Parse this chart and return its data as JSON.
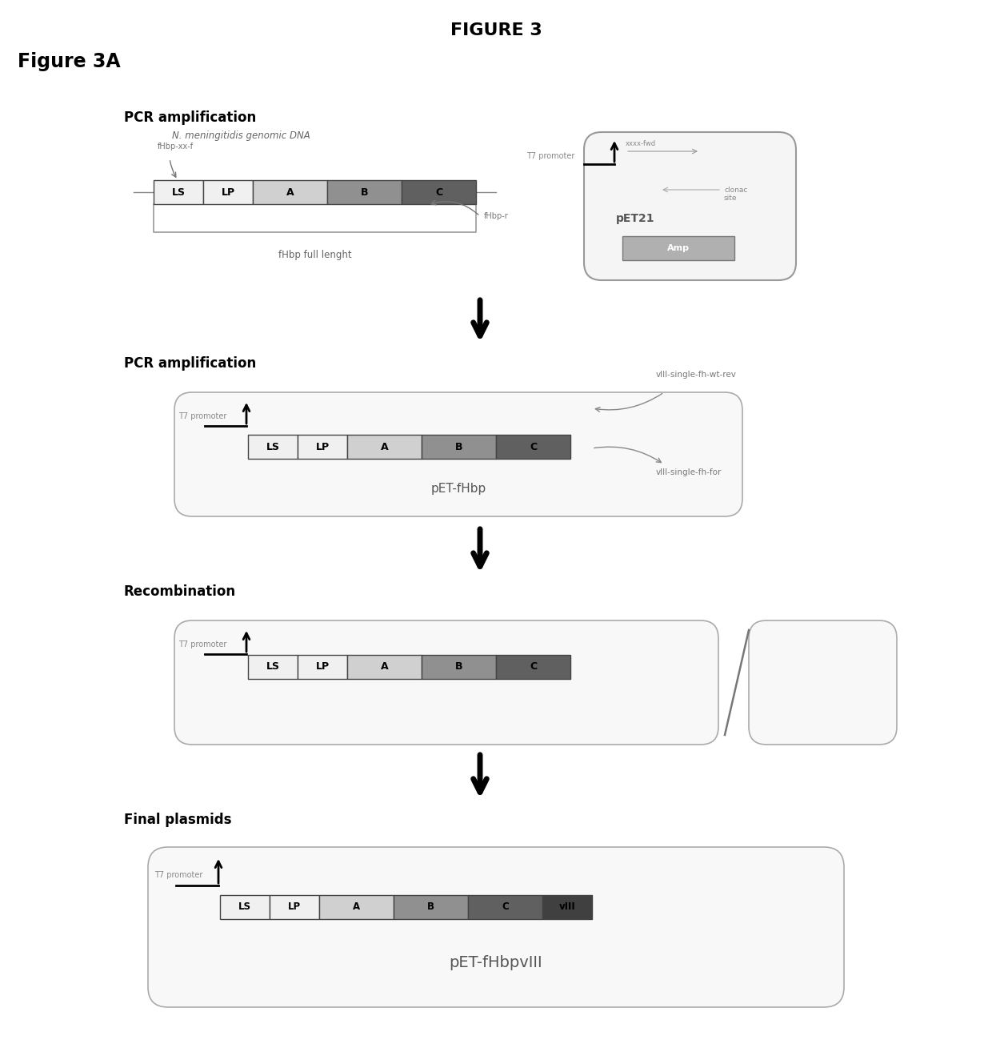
{
  "title": "FIGURE 3",
  "subtitle": "Figure 3A",
  "bg_color": "#ffffff",
  "sec1_label": "PCR amplification",
  "sec1_sublabel": "N. meningitidis genomic DNA",
  "sec2_label": "PCR amplification",
  "sec3_label": "Recombination",
  "sec4_label": "Final plasmids",
  "fhbp_label": "fHbp full lenght",
  "pet_fhbp_label": "pET-fHbp",
  "pet_fhbpviii_label": "pET-fHbpvIII",
  "pet21_label": "pET21",
  "amp_label": "Amp",
  "t7_label": "T7 promoter",
  "fhbp_f_label": "fHbp-xx-f",
  "fhbp_r_label": "fHbp-r",
  "viii_rev_label": "vIII-single-fh-wt-rev",
  "viii_for_label": "vIII-single-fh-for",
  "xxxx_fwd_label": "xxxx-fwd",
  "clonac_label": "clonac\nsite",
  "seg_colors": {
    "LS": "#f0f0f0",
    "LP": "#f0f0f0",
    "A": "#d0d0d0",
    "B": "#909090",
    "C": "#606060",
    "vIII": "#404040"
  }
}
